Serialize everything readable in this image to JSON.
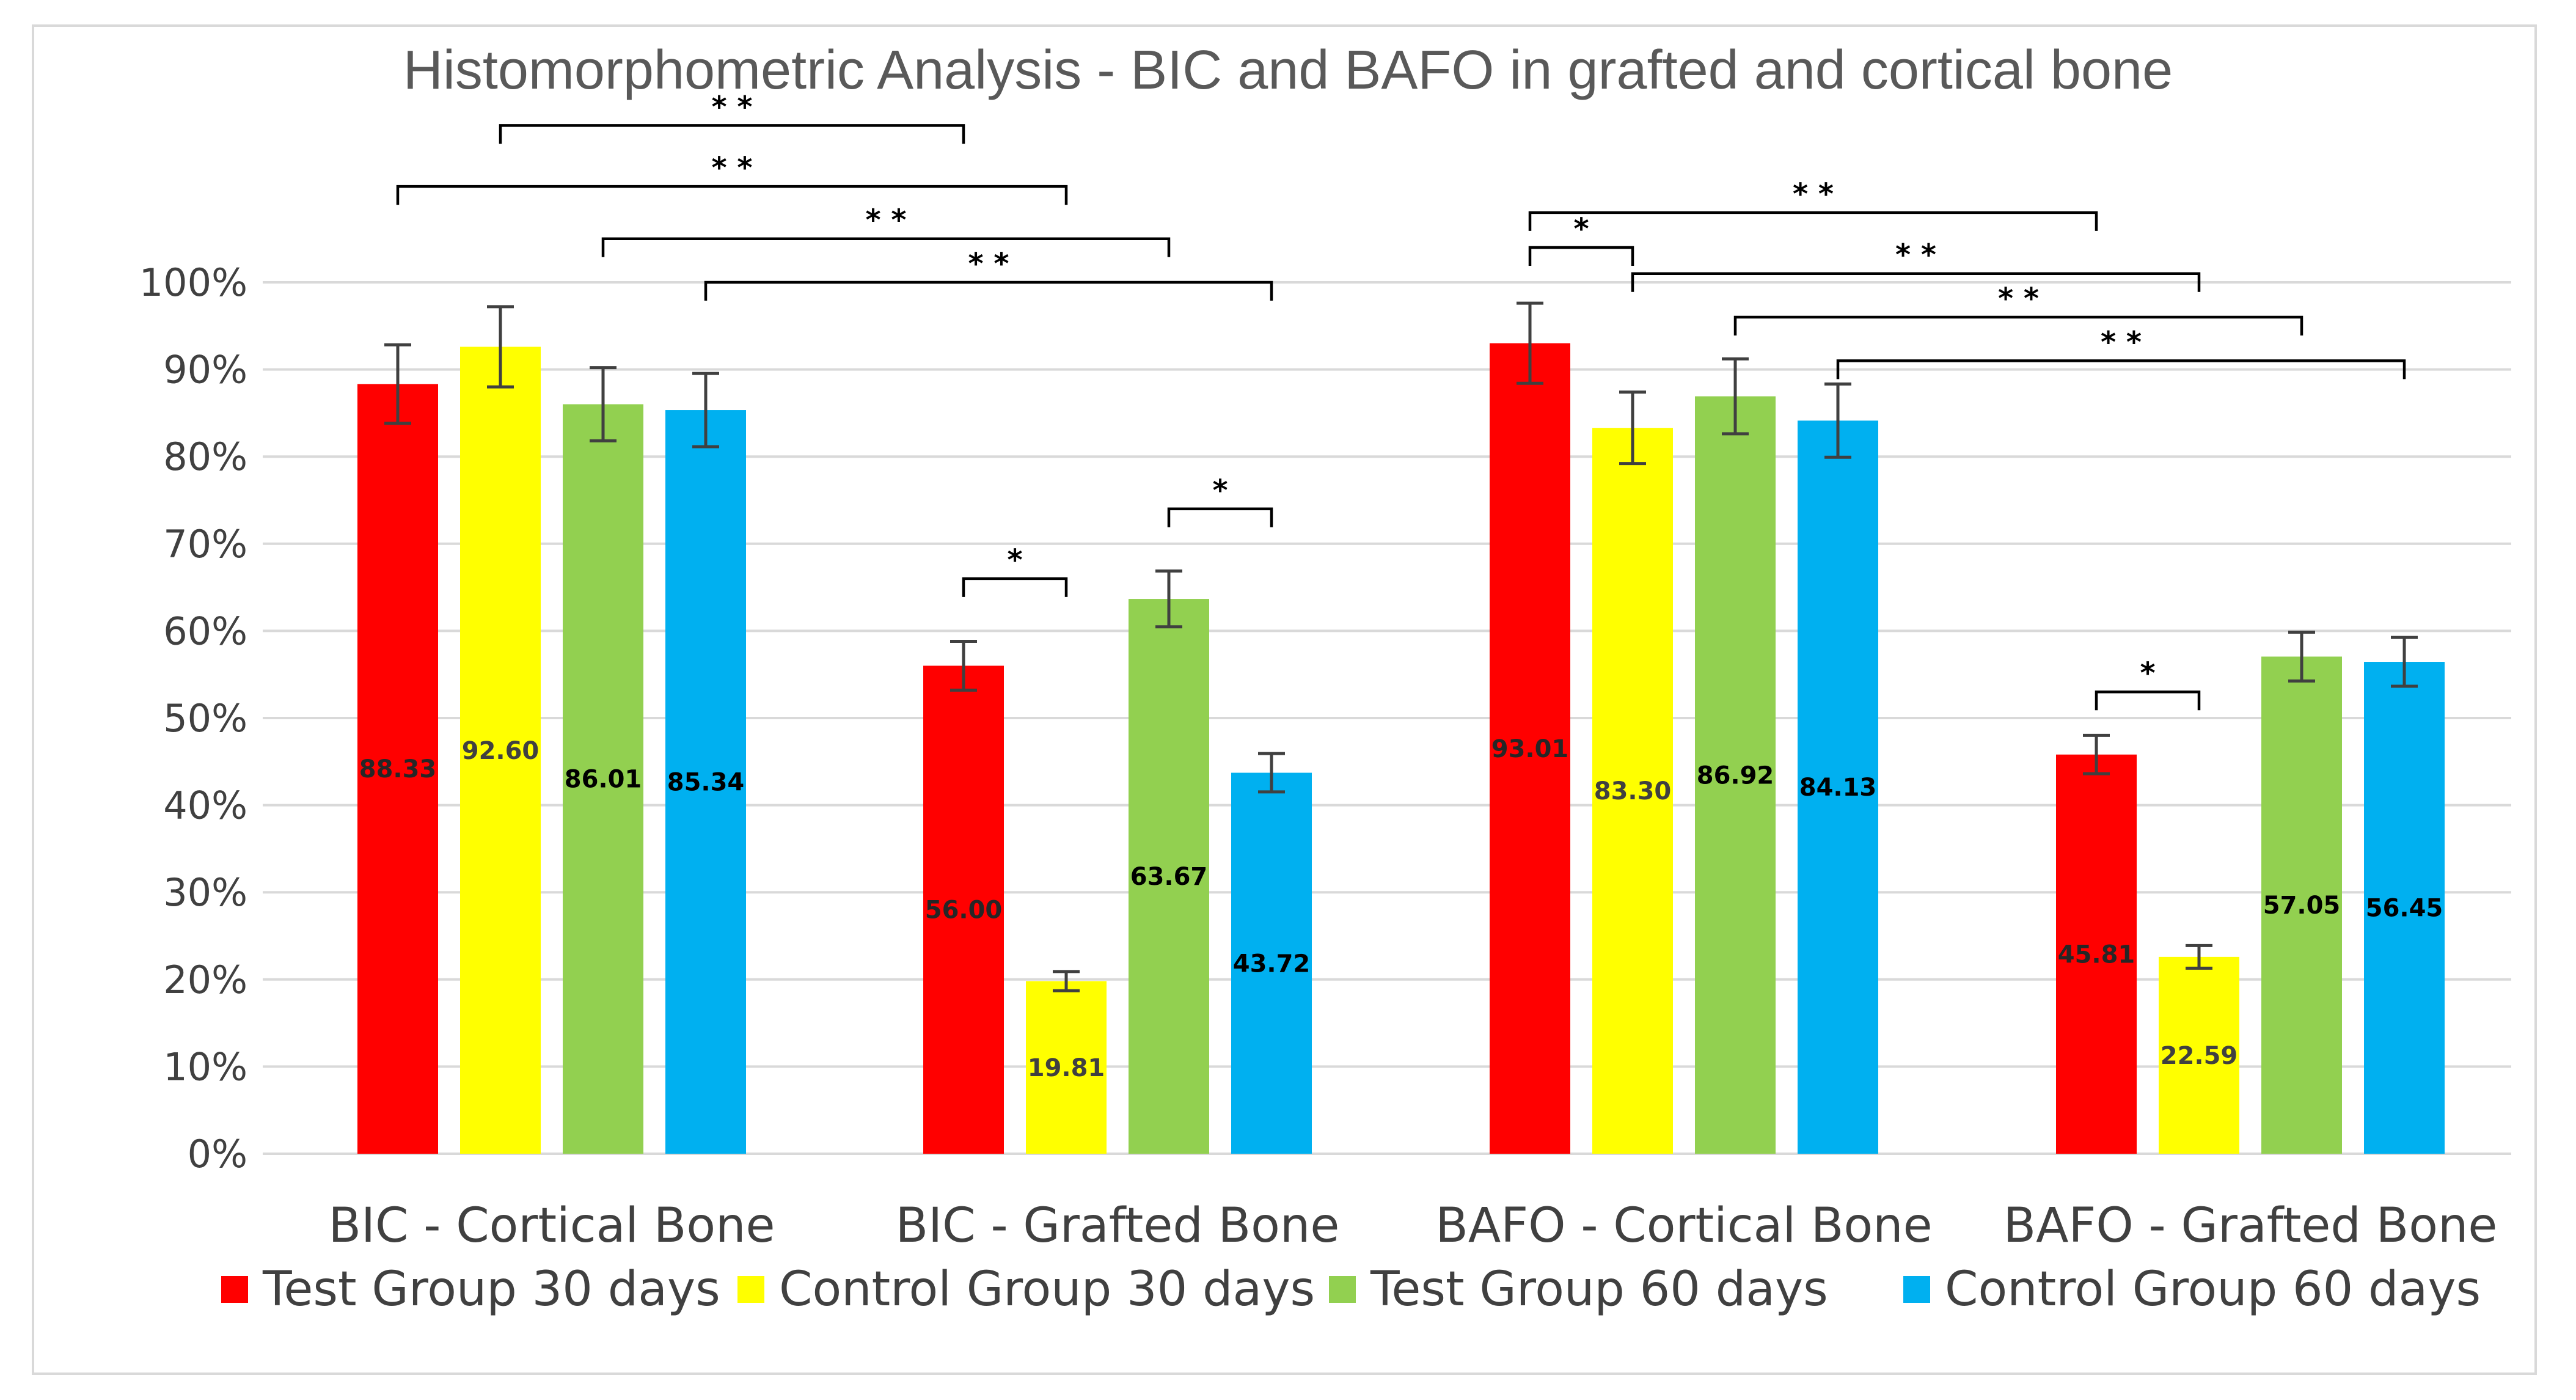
{
  "chart_data": {
    "type": "bar",
    "title": "Histomorphometric Analysis - BIC and BAFO in grafted and cortical bone",
    "xlabel": "",
    "ylabel": "",
    "ylim": [
      0,
      100
    ],
    "yticks": [
      "0%",
      "10%",
      "20%",
      "30%",
      "40%",
      "50%",
      "60%",
      "70%",
      "80%",
      "90%",
      "100%"
    ],
    "grid": true,
    "legend_position": "bottom",
    "categories": [
      "BIC - Cortical Bone",
      "BIC - Grafted Bone",
      "BAFO - Cortical Bone",
      "BAFO - Grafted Bone"
    ],
    "series": [
      {
        "name": "Test Group 30 days",
        "color": "#ff0000",
        "label_color": "#262626",
        "values": [
          88.33,
          56.0,
          93.01,
          45.81
        ],
        "labels": [
          "88.33",
          "56.00",
          "93.01",
          "45.81"
        ],
        "errors": [
          4.5,
          2.8,
          4.6,
          2.2
        ]
      },
      {
        "name": "Control Group 30 days",
        "color": "#ffff00",
        "label_color": "#404040",
        "values": [
          92.6,
          19.81,
          83.3,
          22.59
        ],
        "labels": [
          "92.60",
          "19.81",
          "83.30",
          "22.59"
        ],
        "errors": [
          4.6,
          1.1,
          4.1,
          1.3
        ]
      },
      {
        "name": "Test Group 60 days",
        "color": "#92d050",
        "label_color": "#000000",
        "values": [
          86.01,
          63.67,
          86.92,
          57.05
        ],
        "labels": [
          "86.01",
          "63.67",
          "86.92",
          "57.05"
        ],
        "errors": [
          4.2,
          3.2,
          4.3,
          2.8
        ]
      },
      {
        "name": "Control Group 60 days",
        "color": "#00b0f0",
        "label_color": "#000000",
        "values": [
          85.34,
          43.72,
          84.13,
          56.45
        ],
        "labels": [
          "85.34",
          "43.72",
          "84.13",
          "56.45"
        ],
        "errors": [
          4.2,
          2.2,
          4.2,
          2.8
        ]
      }
    ],
    "significance": [
      {
        "from": [
          0,
          1
        ],
        "to": [
          1,
          0
        ],
        "level": 118,
        "label": "* *"
      },
      {
        "from": [
          0,
          0
        ],
        "to": [
          1,
          1
        ],
        "level": 111,
        "label": "* *"
      },
      {
        "from": [
          0,
          2
        ],
        "to": [
          1,
          2
        ],
        "level": 105,
        "label": "* *"
      },
      {
        "from": [
          0,
          3
        ],
        "to": [
          1,
          3
        ],
        "level": 100,
        "label": "* *"
      },
      {
        "from": [
          1,
          0
        ],
        "to": [
          1,
          1
        ],
        "level": 66,
        "label": "*"
      },
      {
        "from": [
          1,
          2
        ],
        "to": [
          1,
          3
        ],
        "level": 74,
        "label": "*"
      },
      {
        "from": [
          2,
          0
        ],
        "to": [
          3,
          0
        ],
        "level": 108,
        "label": "* *"
      },
      {
        "from": [
          2,
          0
        ],
        "to": [
          2,
          1
        ],
        "level": 104,
        "label": "*"
      },
      {
        "from": [
          2,
          1
        ],
        "to": [
          3,
          1
        ],
        "level": 101,
        "label": "* *"
      },
      {
        "from": [
          2,
          2
        ],
        "to": [
          3,
          2
        ],
        "level": 96,
        "label": "* *"
      },
      {
        "from": [
          2,
          3
        ],
        "to": [
          3,
          3
        ],
        "level": 91,
        "label": "* *"
      },
      {
        "from": [
          3,
          0
        ],
        "to": [
          3,
          1
        ],
        "level": 53,
        "label": "*"
      }
    ]
  }
}
